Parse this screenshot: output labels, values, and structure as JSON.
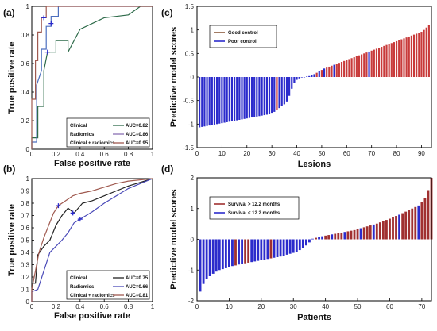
{
  "panels": [
    {
      "id": "a",
      "label": "(a)",
      "type": "line",
      "xlabel": "False positive rate",
      "ylabel": "True positive rate",
      "xlim": [
        0,
        1
      ],
      "ylim": [
        0,
        1
      ],
      "xticks": [
        "0",
        "0.2",
        "0.4",
        "0.6",
        "0.8",
        "1"
      ],
      "yticks": [
        "0",
        "0.2",
        "0.4",
        "0.6",
        "0.8",
        "1"
      ],
      "legend": [
        {
          "name": "Clinical",
          "auc": "AUC=0.82",
          "color": "#2e6b4a"
        },
        {
          "name": "Radiomics",
          "auc": "AUC=0.86",
          "color": "#8a6fb3"
        },
        {
          "name": "Clinical + radiomics",
          "auc": "AUC=0.95",
          "color": "#a05a50"
        }
      ],
      "series": [
        {
          "name": "Clinical",
          "color": "#2e6b4a",
          "points": [
            [
              0,
              0
            ],
            [
              0,
              0.08
            ],
            [
              0.05,
              0.08
            ],
            [
              0.05,
              0.3
            ],
            [
              0.1,
              0.3
            ],
            [
              0.1,
              0.55
            ],
            [
              0.13,
              0.68
            ],
            [
              0.2,
              0.68
            ],
            [
              0.2,
              0.76
            ],
            [
              0.3,
              0.76
            ],
            [
              0.3,
              0.68
            ],
            [
              0.4,
              0.84
            ],
            [
              0.6,
              0.92
            ],
            [
              0.8,
              0.94
            ],
            [
              0.9,
              1
            ],
            [
              1,
              1
            ]
          ]
        },
        {
          "name": "Radiomics",
          "color": "#4d6fbf",
          "points": [
            [
              0,
              0
            ],
            [
              0,
              0.05
            ],
            [
              0.04,
              0.05
            ],
            [
              0.04,
              0.45
            ],
            [
              0.08,
              0.55
            ],
            [
              0.08,
              0.7
            ],
            [
              0.12,
              0.7
            ],
            [
              0.12,
              0.86
            ],
            [
              0.16,
              0.86
            ],
            [
              0.16,
              0.93
            ],
            [
              0.22,
              0.93
            ],
            [
              0.22,
              1
            ],
            [
              1,
              1
            ]
          ]
        },
        {
          "name": "Clinical + radiomics",
          "color": "#a05a50",
          "points": [
            [
              0,
              0
            ],
            [
              0,
              0.35
            ],
            [
              0.03,
              0.35
            ],
            [
              0.03,
              0.62
            ],
            [
              0.05,
              0.62
            ],
            [
              0.05,
              0.82
            ],
            [
              0.08,
              0.82
            ],
            [
              0.08,
              0.92
            ],
            [
              0.12,
              0.92
            ],
            [
              0.12,
              1
            ],
            [
              1,
              1
            ]
          ]
        }
      ],
      "markers": [
        [
          0.1,
          0.92
        ],
        [
          0.16,
          0.88
        ],
        [
          0.13,
          0.68
        ]
      ]
    },
    {
      "id": "b",
      "label": "(b)",
      "type": "line",
      "xlabel": "False positive rate",
      "ylabel": "True positive rate",
      "xlim": [
        0,
        1
      ],
      "ylim": [
        0,
        1
      ],
      "xticks": [
        "0",
        "0.2",
        "0.4",
        "0.6",
        "0.8",
        "1"
      ],
      "yticks": [
        "0",
        "0.1",
        "0.2",
        "0.3",
        "0.4",
        "0.5",
        "0.6",
        "0.7",
        "0.8",
        "0.9",
        "1"
      ],
      "legend": [
        {
          "name": "Clinical",
          "auc": "AUC=0.75",
          "color": "#222222"
        },
        {
          "name": "Radiomics",
          "auc": "AUC=0.66",
          "color": "#4a4ab8"
        },
        {
          "name": "Clinical + radiomics",
          "auc": "AUC=0.81",
          "color": "#a05a50"
        }
      ],
      "series": [
        {
          "name": "Clinical",
          "color": "#222222",
          "points": [
            [
              0,
              0
            ],
            [
              0,
              0.15
            ],
            [
              0.03,
              0.15
            ],
            [
              0.05,
              0.38
            ],
            [
              0.1,
              0.45
            ],
            [
              0.15,
              0.5
            ],
            [
              0.2,
              0.62
            ],
            [
              0.25,
              0.7
            ],
            [
              0.3,
              0.76
            ],
            [
              0.35,
              0.72
            ],
            [
              0.42,
              0.8
            ],
            [
              0.5,
              0.82
            ],
            [
              0.6,
              0.86
            ],
            [
              0.7,
              0.9
            ],
            [
              0.8,
              0.94
            ],
            [
              0.9,
              0.97
            ],
            [
              1,
              1
            ]
          ]
        },
        {
          "name": "Radiomics",
          "color": "#4a4ab8",
          "points": [
            [
              0,
              0
            ],
            [
              0,
              0.08
            ],
            [
              0.05,
              0.1
            ],
            [
              0.1,
              0.25
            ],
            [
              0.15,
              0.4
            ],
            [
              0.2,
              0.45
            ],
            [
              0.25,
              0.5
            ],
            [
              0.3,
              0.56
            ],
            [
              0.35,
              0.64
            ],
            [
              0.4,
              0.67
            ],
            [
              0.45,
              0.7
            ],
            [
              0.5,
              0.73
            ],
            [
              0.6,
              0.8
            ],
            [
              0.7,
              0.86
            ],
            [
              0.8,
              0.92
            ],
            [
              0.9,
              0.96
            ],
            [
              1,
              1
            ]
          ]
        },
        {
          "name": "Clinical + radiomics",
          "color": "#a05a50",
          "points": [
            [
              0,
              0
            ],
            [
              0,
              0.1
            ],
            [
              0.03,
              0.25
            ],
            [
              0.06,
              0.4
            ],
            [
              0.1,
              0.52
            ],
            [
              0.14,
              0.62
            ],
            [
              0.18,
              0.72
            ],
            [
              0.22,
              0.78
            ],
            [
              0.28,
              0.82
            ],
            [
              0.34,
              0.86
            ],
            [
              0.4,
              0.88
            ],
            [
              0.5,
              0.9
            ],
            [
              0.6,
              0.93
            ],
            [
              0.7,
              0.96
            ],
            [
              0.8,
              0.98
            ],
            [
              1,
              1
            ]
          ]
        }
      ],
      "markers": [
        [
          0.22,
          0.78
        ],
        [
          0.34,
          0.72
        ],
        [
          0.4,
          0.67
        ]
      ]
    }
  ],
  "bars": [
    {
      "id": "c",
      "label": "(c)",
      "type": "bar",
      "xlabel": "Lesions",
      "ylabel": "Predictive model scores",
      "xlim": [
        0,
        94
      ],
      "ylim": [
        -1.5,
        1.5
      ],
      "xticks": [
        "0",
        "10",
        "20",
        "30",
        "40",
        "50",
        "60",
        "70",
        "80",
        "90"
      ],
      "yticks": [
        "-1.5",
        "-1",
        "-0.5",
        "0",
        "0.5",
        "1",
        "1.5"
      ],
      "legend": [
        {
          "name": "Good control",
          "color": "#8a5a3c"
        },
        {
          "name": "Poor control",
          "color": "#2b2bcc"
        }
      ],
      "colors": {
        "pos": "#c83a3a",
        "neg": "#2b2bcc"
      },
      "values": [
        -1.07,
        -1.06,
        -1.05,
        -1.04,
        -1.03,
        -1.02,
        -1.01,
        -1.0,
        -0.99,
        -0.98,
        -0.97,
        -0.96,
        -0.95,
        -0.94,
        -0.93,
        -0.92,
        -0.91,
        -0.9,
        -0.89,
        -0.88,
        -0.87,
        -0.86,
        -0.85,
        -0.84,
        -0.83,
        -0.82,
        -0.81,
        -0.8,
        -0.78,
        -0.76,
        -0.74,
        -0.7,
        -0.66,
        -0.62,
        -0.58,
        -0.52,
        -0.4,
        -0.25,
        -0.12,
        -0.06,
        -0.03,
        -0.01,
        0.0,
        0.01,
        0.02,
        0.04,
        0.06,
        0.09,
        0.12,
        0.15,
        0.18,
        0.2,
        0.22,
        0.24,
        0.26,
        0.28,
        0.3,
        0.32,
        0.34,
        0.36,
        0.38,
        0.4,
        0.42,
        0.44,
        0.46,
        0.48,
        0.5,
        0.52,
        0.54,
        0.56,
        0.58,
        0.6,
        0.62,
        0.64,
        0.66,
        0.68,
        0.7,
        0.72,
        0.74,
        0.76,
        0.78,
        0.8,
        0.82,
        0.84,
        0.86,
        0.88,
        0.9,
        0.92,
        0.94,
        0.96,
        1.0,
        1.05,
        1.1
      ],
      "groups": [
        0,
        0,
        0,
        0,
        0,
        0,
        0,
        0,
        0,
        0,
        0,
        0,
        0,
        0,
        0,
        0,
        0,
        0,
        0,
        0,
        0,
        0,
        0,
        0,
        0,
        0,
        0,
        0,
        0,
        0,
        0,
        1,
        0,
        0,
        0,
        0,
        0,
        0,
        0,
        0,
        0,
        0,
        0,
        0,
        0,
        0,
        0,
        1,
        0,
        1,
        0,
        1,
        1,
        1,
        0,
        1,
        1,
        1,
        1,
        1,
        1,
        1,
        1,
        1,
        1,
        1,
        1,
        1,
        0,
        1,
        1,
        1,
        1,
        1,
        1,
        1,
        1,
        1,
        1,
        1,
        1,
        1,
        1,
        1,
        1,
        1,
        1,
        1,
        1,
        1,
        1,
        1,
        1
      ]
    },
    {
      "id": "d",
      "label": "(d)",
      "type": "bar",
      "xlabel": "Patients",
      "ylabel": "Predictive model scores",
      "xlim": [
        0,
        73
      ],
      "ylim": [
        -2,
        2
      ],
      "xticks": [
        "0",
        "10",
        "20",
        "30",
        "40",
        "50",
        "60",
        "70"
      ],
      "yticks": [
        "-2",
        "-1",
        "0",
        "1",
        "2"
      ],
      "legend": [
        {
          "name": "Survival > 12.2 months",
          "color": "#a03030"
        },
        {
          "name": "Survival < 12.2 months",
          "color": "#2b2bcc"
        }
      ],
      "colors": {
        "pos": "#a03030",
        "neg": "#2b2bcc"
      },
      "values": [
        -1.7,
        -1.45,
        -1.3,
        -1.2,
        -1.12,
        -1.05,
        -1.0,
        -0.97,
        -0.94,
        -0.9,
        -0.87,
        -0.85,
        -0.82,
        -0.8,
        -0.78,
        -0.76,
        -0.74,
        -0.72,
        -0.7,
        -0.68,
        -0.66,
        -0.64,
        -0.62,
        -0.6,
        -0.58,
        -0.56,
        -0.53,
        -0.5,
        -0.47,
        -0.44,
        -0.4,
        -0.35,
        -0.28,
        -0.2,
        -0.1,
        0.02,
        0.05,
        0.08,
        0.1,
        0.12,
        0.14,
        0.16,
        0.18,
        0.2,
        0.22,
        0.24,
        0.26,
        0.28,
        0.3,
        0.33,
        0.36,
        0.39,
        0.42,
        0.45,
        0.48,
        0.51,
        0.55,
        0.59,
        0.63,
        0.67,
        0.71,
        0.76,
        0.8,
        0.85,
        0.9,
        0.95,
        1.0,
        1.05,
        1.1,
        1.2,
        1.35,
        1.6,
        2.0
      ],
      "groups": [
        0,
        0,
        0,
        0,
        0,
        0,
        0,
        0,
        0,
        0,
        0,
        1,
        0,
        0,
        1,
        1,
        0,
        0,
        0,
        0,
        0,
        0,
        1,
        0,
        0,
        0,
        0,
        0,
        0,
        0,
        0,
        0,
        0,
        0,
        0,
        0,
        1,
        0,
        0,
        1,
        1,
        0,
        1,
        1,
        1,
        0,
        1,
        1,
        1,
        1,
        0,
        1,
        1,
        1,
        0,
        1,
        1,
        1,
        1,
        1,
        1,
        1,
        0,
        1,
        1,
        1,
        1,
        1,
        0,
        1,
        1,
        1,
        1
      ]
    }
  ]
}
